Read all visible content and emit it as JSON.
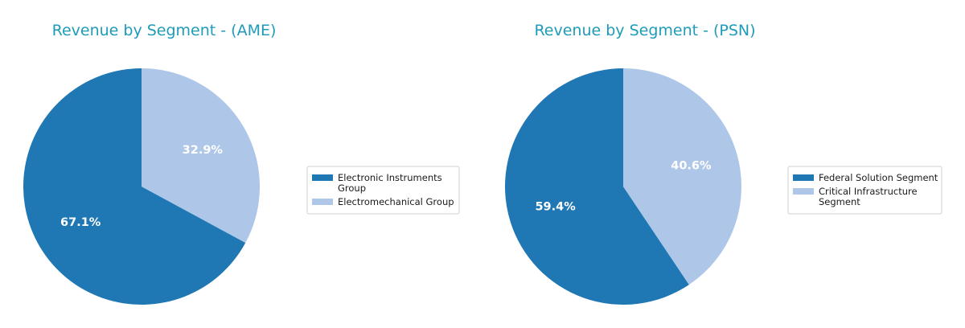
{
  "chart_data": [
    {
      "type": "pie",
      "title": "Revenue by Segment - (AME)",
      "slices": [
        {
          "label": [
            "Electronic Instruments",
            "Group"
          ],
          "value": 67.1,
          "display": "67.1%",
          "color": "#1f77b4"
        },
        {
          "label": [
            "Electromechanical Group"
          ],
          "value": 32.9,
          "display": "32.9%",
          "color": "#aec7e8"
        }
      ],
      "start_angle": 90,
      "direction": "counterclockwise",
      "legend_position": "right"
    },
    {
      "type": "pie",
      "title": "Revenue by Segment - (PSN)",
      "slices": [
        {
          "label": [
            "Federal Solution Segment"
          ],
          "value": 59.4,
          "display": "59.4%",
          "color": "#1f77b4"
        },
        {
          "label": [
            "Critical Infrastructure",
            "Segment"
          ],
          "value": 40.6,
          "display": "40.6%",
          "color": "#aec7e8"
        }
      ],
      "start_angle": 90,
      "direction": "counterclockwise",
      "legend_position": "right"
    }
  ]
}
